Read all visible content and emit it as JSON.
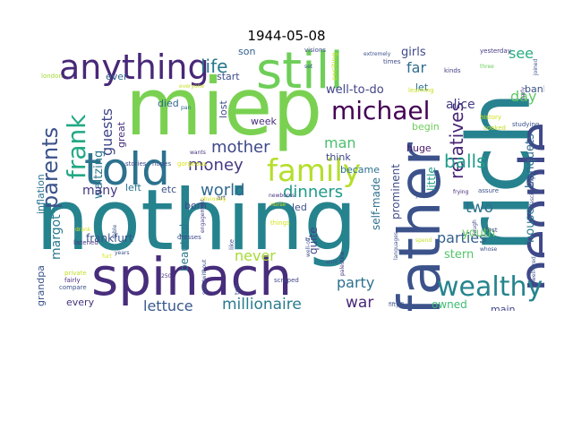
{
  "title": "1944-05-08",
  "words": [
    {
      "t": "nothing",
      "c": "#25838e"
    },
    {
      "t": "miep",
      "c": "#7ad151"
    },
    {
      "t": "rich",
      "c": "#26828e"
    },
    {
      "t": "father",
      "c": "#3b528b"
    },
    {
      "t": "spinach",
      "c": "#472d7b"
    },
    {
      "t": "still",
      "c": "#6ece58"
    },
    {
      "t": "people",
      "c": "#3e4989"
    },
    {
      "t": "told",
      "c": "#2c728e"
    },
    {
      "t": "anything",
      "c": "#482878"
    },
    {
      "t": "family",
      "c": "#b5de2b"
    },
    {
      "t": "michael",
      "c": "#440154"
    },
    {
      "t": "frank",
      "c": "#22a884"
    },
    {
      "t": "wealthy",
      "c": "#25848e"
    },
    {
      "t": "parents",
      "c": "#3b528b"
    },
    {
      "t": "relatives",
      "c": "#482576"
    },
    {
      "t": "balls",
      "c": "#1f9e89"
    },
    {
      "t": "mother",
      "c": "#3e4a89"
    },
    {
      "t": "money",
      "c": "#443983"
    },
    {
      "t": "life",
      "c": "#2a788e"
    },
    {
      "t": "dinners",
      "c": "#1f9a8a"
    },
    {
      "t": "world",
      "c": "#31688e"
    },
    {
      "t": "millionaire",
      "c": "#297b8e"
    },
    {
      "t": "lettuce",
      "c": "#38588c"
    },
    {
      "t": "never",
      "c": "#a5db36"
    },
    {
      "t": "parties",
      "c": "#355f8d"
    },
    {
      "t": "party",
      "c": "#2d708e"
    },
    {
      "t": "war",
      "c": "#482878"
    },
    {
      "t": "two",
      "c": "#2c728e"
    },
    {
      "t": "day",
      "c": "#5ec962"
    },
    {
      "t": "see",
      "c": "#28ae80"
    },
    {
      "t": "man",
      "c": "#4ac16d"
    },
    {
      "t": "guests",
      "c": "#3f4788"
    },
    {
      "t": "girls",
      "c": "#3e4989"
    },
    {
      "t": "far",
      "c": "#2e6e8e"
    },
    {
      "t": "margot",
      "c": "#2a788e"
    },
    {
      "t": "alice",
      "c": "#433e85"
    },
    {
      "t": "banquets",
      "c": "#31688e"
    },
    {
      "t": "well-to-do",
      "c": "#414487"
    },
    {
      "t": "waltzing",
      "c": "#2a768e"
    },
    {
      "t": "many",
      "c": "#453781"
    },
    {
      "t": "frankfurt",
      "c": "#3a538b"
    },
    {
      "t": "beautiful",
      "c": "#2a778e"
    },
    {
      "t": "little",
      "c": "#1f9e89"
    },
    {
      "t": "self-made",
      "c": "#2d718e"
    },
    {
      "t": "prominent",
      "c": "#3e4c8a"
    },
    {
      "t": "quite",
      "c": "#404588"
    },
    {
      "t": "youth",
      "c": "#67cc5c"
    },
    {
      "t": "house",
      "c": "#2a788e"
    },
    {
      "t": "stern",
      "c": "#52c569"
    },
    {
      "t": "owned",
      "c": "#3dbc74"
    },
    {
      "t": "inflation",
      "c": "#2c738e"
    },
    {
      "t": "grandpa",
      "c": "#3b528b"
    },
    {
      "t": "every",
      "c": "#46337e"
    },
    {
      "t": "main",
      "c": "#404688"
    },
    {
      "t": "born",
      "c": "#3e4989"
    },
    {
      "t": "huge",
      "c": "#48186a"
    },
    {
      "t": "bank",
      "c": "#3b528b"
    },
    {
      "t": "week",
      "c": "#472c7a"
    },
    {
      "t": "think",
      "c": "#3f4788"
    },
    {
      "t": "became",
      "c": "#2c728e"
    },
    {
      "t": "begin",
      "c": "#6ccd5a"
    },
    {
      "t": "led",
      "c": "#3d4e8a"
    },
    {
      "t": "let",
      "c": "#2d708e"
    },
    {
      "t": "died",
      "c": "#31688e"
    },
    {
      "t": "start",
      "c": "#3d4e8a"
    },
    {
      "t": "son",
      "c": "#34608d"
    },
    {
      "t": "ever",
      "c": "#32658e"
    },
    {
      "t": "great",
      "c": "#472f7d"
    },
    {
      "t": "lost",
      "c": "#3c4f8a"
    },
    {
      "t": "etc",
      "c": "#3b528b"
    },
    {
      "t": "left",
      "c": "#2b748e"
    },
    {
      "t": "exciting",
      "c": "#c2df23"
    },
    {
      "t": "yesterday",
      "c": "#443a83"
    },
    {
      "t": "times",
      "c": "#3e4c8a"
    },
    {
      "t": "kinds",
      "c": "#424086"
    },
    {
      "t": "extremely",
      "c": "#3b528b"
    },
    {
      "t": "visions",
      "c": "#3e4c8a"
    },
    {
      "t": "set",
      "c": "#38598c"
    },
    {
      "t": "london",
      "c": "#a0da39"
    },
    {
      "t": "learning",
      "c": "#c8e020"
    },
    {
      "t": "everyone",
      "c": "#c5e021"
    },
    {
      "t": "studying",
      "c": "#3b528b"
    },
    {
      "t": "history",
      "c": "#d2e21b"
    },
    {
      "t": "cooked",
      "c": "#c2df23"
    },
    {
      "t": "pan",
      "c": "#31688e"
    },
    {
      "t": "stories",
      "c": "#3e4989"
    },
    {
      "t": "hopes",
      "c": "#3b528b"
    },
    {
      "t": "gorgeous",
      "c": "#d8e219"
    },
    {
      "t": "wants",
      "c": "#46327e"
    },
    {
      "t": "nurse",
      "c": "#d5e21a"
    },
    {
      "t": "newborns",
      "c": "#453581"
    },
    {
      "t": "assure",
      "c": "#3b528b"
    },
    {
      "t": "spend",
      "c": "#c0df25"
    },
    {
      "t": "year",
      "c": "#3b528b"
    },
    {
      "t": "frying",
      "c": "#482878"
    },
    {
      "t": "first",
      "c": "#3b528b"
    },
    {
      "t": "laugh",
      "c": "#3e4989"
    },
    {
      "t": "scraped",
      "c": "#404588"
    },
    {
      "t": "palestine",
      "c": "#46337e"
    },
    {
      "t": "languages",
      "c": "#3d4e8a"
    },
    {
      "t": "fifty-five",
      "c": "#3b528b"
    },
    {
      "t": "listened",
      "c": "#46337e"
    },
    {
      "t": "drank",
      "c": "#d5e21a"
    },
    {
      "t": "compare",
      "c": "#3b528b"
    },
    {
      "t": "fairly",
      "c": "#472d7b"
    },
    {
      "t": "private",
      "c": "#c0df25"
    },
    {
      "t": "years",
      "c": "#3b528b"
    },
    {
      "t": "dresses",
      "c": "#3e4989"
    },
    {
      "t": "engagement",
      "c": "#433e85"
    },
    {
      "t": "spentwithout",
      "c": "#3b528b"
    },
    {
      "t": "250",
      "c": "#472d7b"
    },
    {
      "t": "art",
      "c": "#3e4989"
    },
    {
      "t": "like",
      "c": "#3b528b"
    },
    {
      "t": "table",
      "c": "#3b528b"
    },
    {
      "t": "furt",
      "c": "#d5e21a"
    },
    {
      "t": "well-off",
      "c": "#3b528b"
    },
    {
      "t": "ten",
      "c": "#3b528b"
    },
    {
      "t": "things",
      "c": "#d8e219"
    },
    {
      "t": "fascinating",
      "c": "#3e4989"
    },
    {
      "t": "joined",
      "c": "#3b528b"
    },
    {
      "t": "aunt",
      "c": "#3b528b"
    },
    {
      "t": "obviously",
      "c": "#d5e21a"
    },
    {
      "t": "whose",
      "c": "#3b528b"
    },
    {
      "t": "three",
      "c": "#6ccd5a"
    },
    {
      "t": "early",
      "c": "#46337e"
    },
    {
      "t": "well-bred",
      "c": "#3b528b"
    }
  ]
}
